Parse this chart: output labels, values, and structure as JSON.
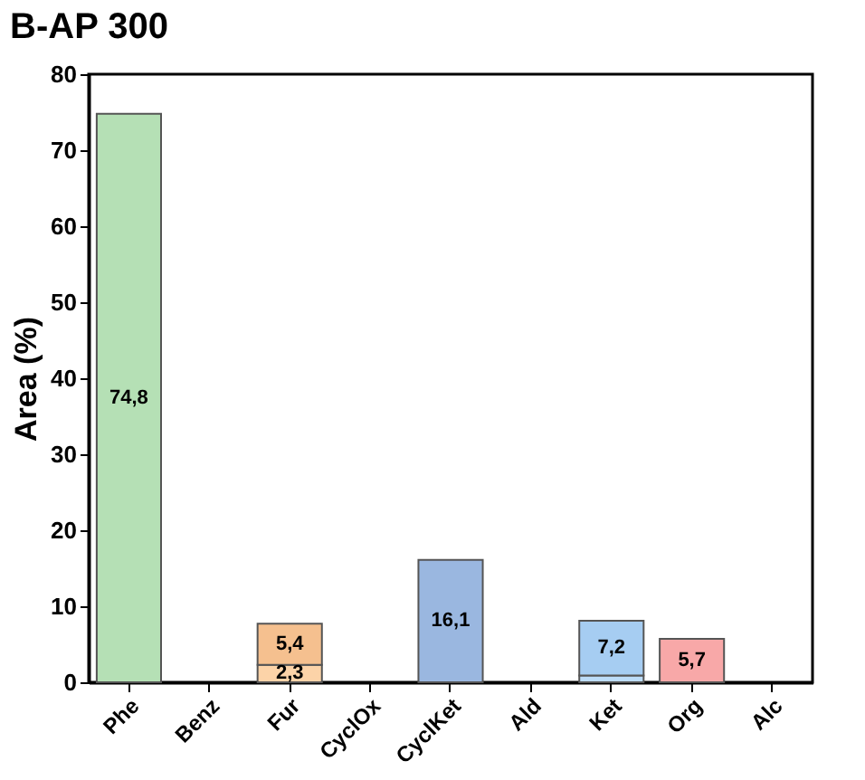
{
  "chart_data": {
    "type": "bar",
    "title": "B-AP 300",
    "ylabel": "Area (%)",
    "stacked": true,
    "categories": [
      "Phe",
      "Benz",
      "Fur",
      "CyclOx",
      "CyclKet",
      "Ald",
      "Ket",
      "Org",
      "Alc"
    ],
    "series": [
      {
        "colors": [
          "#b5e0b5",
          null,
          "#fcd3a8",
          null,
          "#9ab7e0",
          null,
          "#bcdcf8",
          "#f8a8a8",
          null
        ],
        "values": [
          74.8,
          null,
          2.3,
          null,
          16.1,
          null,
          0.9,
          5.7,
          null
        ],
        "value_labels": [
          "74,8",
          null,
          "2,3",
          null,
          "16,1",
          null,
          null,
          "5,7",
          null
        ]
      },
      {
        "colors": [
          null,
          null,
          "#f5c08f",
          null,
          null,
          null,
          "#a6cdf2",
          null,
          null
        ],
        "values": [
          null,
          null,
          5.4,
          null,
          null,
          null,
          7.2,
          null,
          null
        ],
        "value_labels": [
          null,
          null,
          "5,4",
          null,
          null,
          null,
          "7,2",
          null,
          null
        ]
      }
    ],
    "ylim": [
      0,
      80
    ],
    "yticks": [
      0,
      10,
      20,
      30,
      40,
      50,
      60,
      70,
      80
    ]
  }
}
